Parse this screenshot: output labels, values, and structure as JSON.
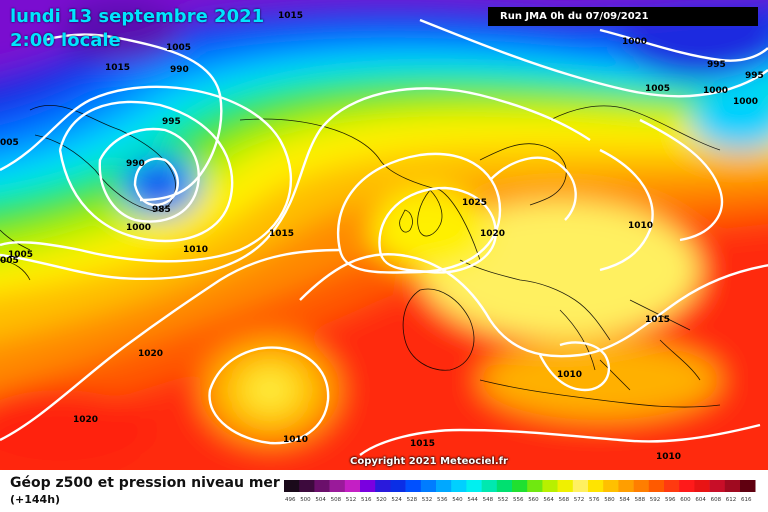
{
  "header": {
    "date_line1": "lundi 13 septembre 2021",
    "date_line2": "2:00 locale",
    "run_info": "Run JMA 0h du 07/09/2021"
  },
  "footer": {
    "title": "Géop z500 et pression niveau mer",
    "range": "(+144h)",
    "copyright": "Copyright 2021 Meteociel.fr"
  },
  "legend": {
    "ticks": [
      "496",
      "500",
      "504",
      "508",
      "512",
      "516",
      "520",
      "524",
      "528",
      "532",
      "536",
      "540",
      "544",
      "548",
      "552",
      "556",
      "560",
      "564",
      "568",
      "572",
      "576",
      "580",
      "584",
      "588",
      "592",
      "596",
      "600",
      "604",
      "608",
      "612",
      "616"
    ],
    "colors": [
      "#1a0a1a",
      "#3d0a3d",
      "#6b0f6b",
      "#9a1a9a",
      "#c41fc4",
      "#7a00e0",
      "#2a1adc",
      "#0a2ee6",
      "#0050ff",
      "#007cff",
      "#00a8ff",
      "#00d0ff",
      "#00f0f0",
      "#00e8b0",
      "#00e070",
      "#20e030",
      "#70e810",
      "#b8f000",
      "#f0f000",
      "#fff060",
      "#ffe400",
      "#ffc000",
      "#ff9e00",
      "#ff7e00",
      "#ff5a00",
      "#ff3a10",
      "#ff1a1a",
      "#e81414",
      "#c80e28",
      "#a00a20",
      "#600010"
    ]
  },
  "isobar_labels": [
    {
      "text": "1015"
    },
    {
      "text": "1005"
    },
    {
      "text": "1015"
    },
    {
      "text": "990"
    },
    {
      "text": "995"
    },
    {
      "text": "005"
    },
    {
      "text": "990"
    },
    {
      "text": "985"
    },
    {
      "text": "1000"
    },
    {
      "text": "1010"
    },
    {
      "text": "1015"
    },
    {
      "text": "005"
    },
    {
      "text": "1005"
    },
    {
      "text": "1020"
    },
    {
      "text": "1020"
    },
    {
      "text": "1025"
    },
    {
      "text": "1020"
    },
    {
      "text": "1010"
    },
    {
      "text": "1015"
    },
    {
      "text": "1010"
    },
    {
      "text": "1010"
    },
    {
      "text": "1015"
    },
    {
      "text": "1010"
    },
    {
      "text": "1000"
    },
    {
      "text": "995"
    },
    {
      "text": "995"
    },
    {
      "text": "1005"
    },
    {
      "text": "1000"
    },
    {
      "text": "1000"
    }
  ]
}
